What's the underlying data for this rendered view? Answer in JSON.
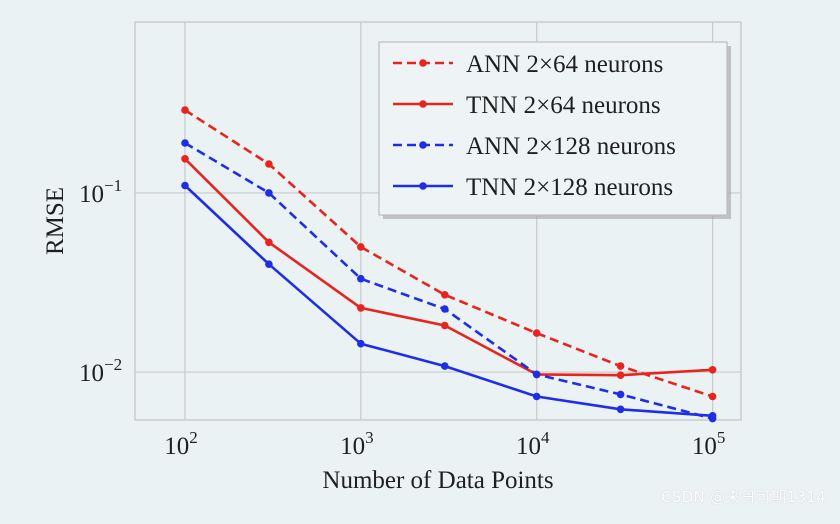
{
  "chart_data": {
    "type": "line",
    "xlabel": "Number of Data Points",
    "ylabel": "RMSE",
    "x_scale": "log",
    "y_scale": "log",
    "xlim": [
      52,
      145000
    ],
    "ylim": [
      0.0054,
      0.9
    ],
    "grid": true,
    "legend_position": "top-right",
    "x_ticks": [
      {
        "value": 100,
        "base": "10",
        "exp": "2"
      },
      {
        "value": 1000,
        "base": "10",
        "exp": "3"
      },
      {
        "value": 10000,
        "base": "10",
        "exp": "4"
      },
      {
        "value": 100000,
        "base": "10",
        "exp": "5"
      }
    ],
    "y_ticks": [
      {
        "value": 0.1,
        "base": "10",
        "exp": "−1"
      },
      {
        "value": 0.01,
        "base": "10",
        "exp": "−2"
      }
    ],
    "x": [
      100,
      300,
      1000,
      3000,
      10000,
      30000,
      100000
    ],
    "series": [
      {
        "name": "ANN 2×64 neurons",
        "color": "#e8241f",
        "dash": true,
        "values": [
          0.29,
          0.145,
          0.05,
          0.027,
          0.0165,
          0.0108,
          0.0073
        ]
      },
      {
        "name": "TNN 2×64 neurons",
        "color": "#e8241f",
        "dash": false,
        "values": [
          0.155,
          0.053,
          0.0228,
          0.0182,
          0.0097,
          0.0096,
          0.0103
        ]
      },
      {
        "name": "ANN 2×128 neurons",
        "color": "#1e2ee6",
        "dash": true,
        "values": [
          0.19,
          0.1,
          0.0332,
          0.0225,
          0.0097,
          0.0075,
          0.0055
        ]
      },
      {
        "name": "TNN 2×128 neurons",
        "color": "#1e2ee6",
        "dash": false,
        "values": [
          0.11,
          0.04,
          0.0144,
          0.0108,
          0.0073,
          0.0062,
          0.0057
        ]
      }
    ]
  },
  "watermark": "CSDN @来日可期1314"
}
